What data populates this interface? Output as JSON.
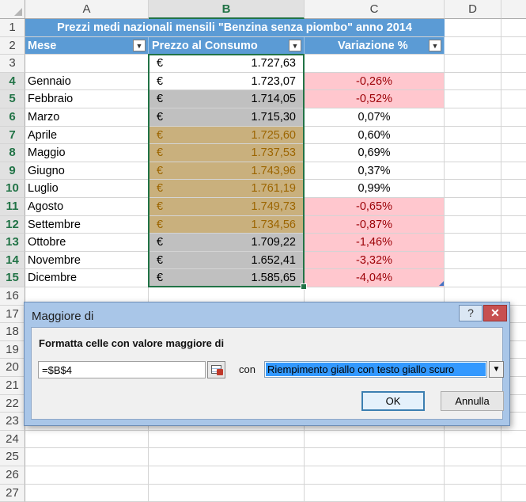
{
  "columns": [
    "A",
    "B",
    "C",
    "D"
  ],
  "selected_column": "B",
  "table": {
    "title": "Prezzi medi nazionali mensili \"Benzina senza piombo\" anno 2014",
    "headers": {
      "mese": "Mese",
      "prezzo": "Prezzo al Consumo",
      "variazione": "Variazione %"
    },
    "filter_icon": "▼",
    "currency": "€",
    "base_row": {
      "row": "3",
      "price": "1.727,63"
    },
    "rows": [
      {
        "row": "4",
        "mese": "Gennaio",
        "price": "1.723,07",
        "var": "-0,26%"
      },
      {
        "row": "5",
        "mese": "Febbraio",
        "price": "1.714,05",
        "var": "-0,52%"
      },
      {
        "row": "6",
        "mese": "Marzo",
        "price": "1.715,30",
        "var": "0,07%"
      },
      {
        "row": "7",
        "mese": "Aprile",
        "price": "1.725,60",
        "var": "0,60%"
      },
      {
        "row": "8",
        "mese": "Maggio",
        "price": "1.737,53",
        "var": "0,69%"
      },
      {
        "row": "9",
        "mese": "Giugno",
        "price": "1.743,96",
        "var": "0,37%"
      },
      {
        "row": "10",
        "mese": "Luglio",
        "price": "1.761,19",
        "var": "0,99%"
      },
      {
        "row": "11",
        "mese": "Agosto",
        "price": "1.749,73",
        "var": "-0,65%"
      },
      {
        "row": "12",
        "mese": "Settembre",
        "price": "1.734,56",
        "var": "-0,87%"
      },
      {
        "row": "13",
        "mese": "Ottobre",
        "price": "1.709,22",
        "var": "-1,46%"
      },
      {
        "row": "14",
        "mese": "Novembre",
        "price": "1.652,41",
        "var": "-3,32%"
      },
      {
        "row": "15",
        "mese": "Dicembre",
        "price": "1.585,65",
        "var": "-4,04%"
      }
    ],
    "row_numbers": [
      "1",
      "2",
      "3",
      "4",
      "5",
      "6",
      "7",
      "8",
      "9",
      "10",
      "11",
      "12",
      "13",
      "14",
      "15",
      "16",
      "17",
      "18",
      "19",
      "20",
      "21",
      "22",
      "23",
      "24",
      "25",
      "26",
      "27"
    ]
  },
  "colors": {
    "header_blue": "#5b9bd5",
    "highlight_gold": "#c9b07d",
    "gold_text": "#9c6500",
    "gray": "#c0c0c0",
    "pink": "#ffc7ce",
    "pink_text": "#9c0006",
    "selection_green": "#217346"
  },
  "dialog": {
    "title": "Maggiore di",
    "help_label": "?",
    "close_label": "✕",
    "prompt": "Formatta celle con valore maggiore di",
    "value": "=$B$4",
    "connector": "con",
    "format_selected": "Riempimento giallo con testo giallo scuro",
    "dropdown_arrow": "▼",
    "ok_label": "OK",
    "cancel_label": "Annulla"
  }
}
